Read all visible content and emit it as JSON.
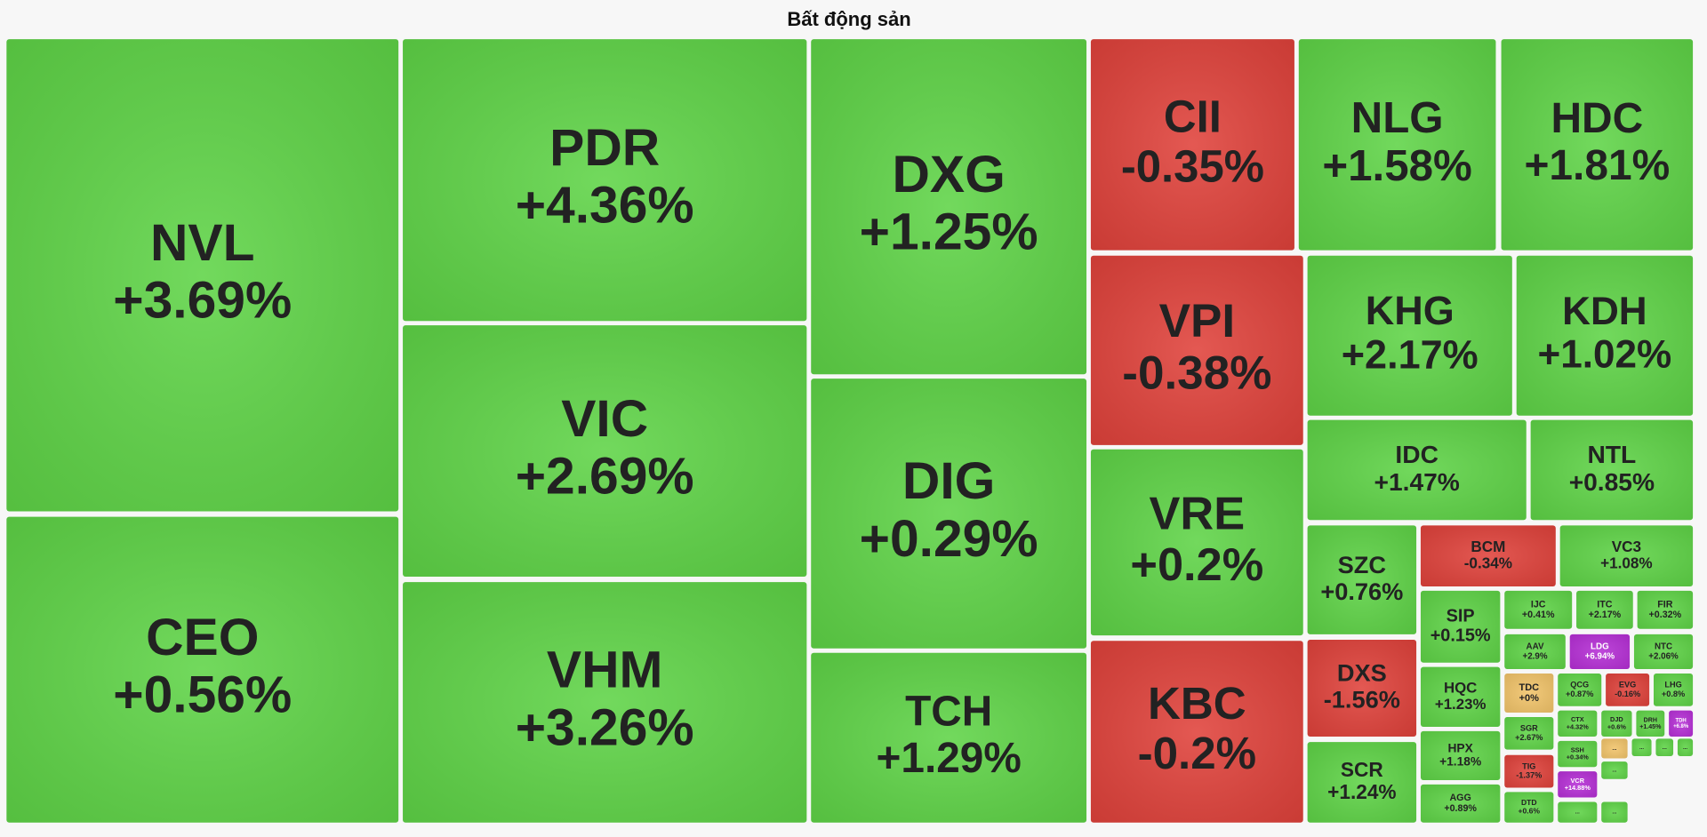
{
  "chart_data": {
    "type": "treemap",
    "title": "Bất động sản",
    "items": [
      {
        "name": "NVL",
        "value": 3.69,
        "value_label": "+3.69%",
        "color": "#5fd447"
      },
      {
        "name": "CEO",
        "value": 0.56,
        "value_label": "+0.56%",
        "color": "#5fd447"
      },
      {
        "name": "PDR",
        "value": 4.36,
        "value_label": "+4.36%",
        "color": "#5fd447"
      },
      {
        "name": "VIC",
        "value": 2.69,
        "value_label": "+2.69%",
        "color": "#5fd447"
      },
      {
        "name": "VHM",
        "value": 3.26,
        "value_label": "+3.26%",
        "color": "#5fd447"
      },
      {
        "name": "DXG",
        "value": 1.25,
        "value_label": "+1.25%",
        "color": "#5fd447"
      },
      {
        "name": "DIG",
        "value": 0.29,
        "value_label": "+0.29%",
        "color": "#5fd447"
      },
      {
        "name": "TCH",
        "value": 1.29,
        "value_label": "+1.29%",
        "color": "#5fd447"
      },
      {
        "name": "CII",
        "value": -0.35,
        "value_label": "-0.35%",
        "color": "#e0423b"
      },
      {
        "name": "NLG",
        "value": 1.58,
        "value_label": "+1.58%",
        "color": "#5fd447"
      },
      {
        "name": "HDC",
        "value": 1.81,
        "value_label": "+1.81%",
        "color": "#5fd447"
      },
      {
        "name": "VPI",
        "value": -0.38,
        "value_label": "-0.38%",
        "color": "#e0423b"
      },
      {
        "name": "KHG",
        "value": 2.17,
        "value_label": "+2.17%",
        "color": "#5fd447"
      },
      {
        "name": "KDH",
        "value": 1.02,
        "value_label": "+1.02%",
        "color": "#5fd447"
      },
      {
        "name": "VRE",
        "value": 0.2,
        "value_label": "+0.2%",
        "color": "#5fd447"
      },
      {
        "name": "KBC",
        "value": -0.2,
        "value_label": "-0.2%",
        "color": "#e0423b"
      },
      {
        "name": "IDC",
        "value": 1.47,
        "value_label": "+1.47%",
        "color": "#5fd447"
      },
      {
        "name": "NTL",
        "value": 0.85,
        "value_label": "+0.85%",
        "color": "#5fd447"
      },
      {
        "name": "SZC",
        "value": 0.76,
        "value_label": "+0.76%",
        "color": "#5fd447"
      },
      {
        "name": "DXS",
        "value": -1.56,
        "value_label": "-1.56%",
        "color": "#e0423b"
      },
      {
        "name": "SCR",
        "value": 1.24,
        "value_label": "+1.24%",
        "color": "#5fd447"
      },
      {
        "name": "BCM",
        "value": -0.34,
        "value_label": "-0.34%",
        "color": "#e0423b"
      },
      {
        "name": "VC3",
        "value": 1.08,
        "value_label": "+1.08%",
        "color": "#5fd447"
      },
      {
        "name": "SIP",
        "value": 0.15,
        "value_label": "+0.15%",
        "color": "#5fd447"
      },
      {
        "name": "HQC",
        "value": 1.23,
        "value_label": "+1.23%",
        "color": "#5fd447"
      },
      {
        "name": "HPX",
        "value": 1.18,
        "value_label": "+1.18%",
        "color": "#5fd447"
      },
      {
        "name": "AGG",
        "value": 0.89,
        "value_label": "+0.89%",
        "color": "#5fd447"
      },
      {
        "name": "IJC",
        "value": 0.41,
        "value_label": "+0.41%",
        "color": "#5fd447"
      },
      {
        "name": "ITC",
        "value": 2.17,
        "value_label": "+2.17%",
        "color": "#5fd447"
      },
      {
        "name": "FIR",
        "value": 0.32,
        "value_label": "+0.32%",
        "color": "#5fd447"
      },
      {
        "name": "AAV",
        "value": 2.9,
        "value_label": "+2.9%",
        "color": "#5fd447"
      },
      {
        "name": "LDG",
        "value": 6.94,
        "value_label": "+6.94%",
        "color": "#b62fd6",
        "text_color": "#ffffff"
      },
      {
        "name": "NTC",
        "value": 2.06,
        "value_label": "+2.06%",
        "color": "#5fd447"
      },
      {
        "name": "TDC",
        "value": 0,
        "value_label": "+0%",
        "color": "#f2c46a"
      },
      {
        "name": "QCG",
        "value": 0.87,
        "value_label": "+0.87%",
        "color": "#5fd447"
      },
      {
        "name": "EVG",
        "value": -0.16,
        "value_label": "-0.16%",
        "color": "#e0423b"
      },
      {
        "name": "LHG",
        "value": 0.8,
        "value_label": "+0.8%",
        "color": "#5fd447"
      },
      {
        "name": "SGR",
        "value": 2.67,
        "value_label": "+2.67%",
        "color": "#5fd447"
      },
      {
        "name": "CTX",
        "value": 4.32,
        "value_label": "+4.32%",
        "color": "#5fd447"
      },
      {
        "name": "DJD",
        "value": 0.6,
        "value_label": "+0.6%",
        "color": "#5fd447"
      },
      {
        "name": "DRH",
        "value": 1.45,
        "value_label": "+1.45%",
        "color": "#5fd447"
      },
      {
        "name": "TDH",
        "value": 6.8,
        "value_label": "+6.8%",
        "color": "#b62fd6",
        "text_color": "#ffffff"
      },
      {
        "name": "TIG",
        "value": -1.37,
        "value_label": "-1.37%",
        "color": "#e0423b"
      },
      {
        "name": "SSH",
        "value": 0.34,
        "value_label": "+0.34%",
        "color": "#5fd447"
      },
      {
        "name": "VCR",
        "value": 14.88,
        "value_label": "+14.88%",
        "color": "#b62fd6",
        "text_color": "#ffffff"
      },
      {
        "name": "DTD",
        "value": 0.6,
        "value_label": "+0.6%",
        "color": "#5fd447"
      },
      {
        "name": "...",
        "color": "#f2c46a"
      },
      {
        "name": "...",
        "color": "#5fd447"
      },
      {
        "name": "...",
        "color": "#5fd447"
      },
      {
        "name": "...",
        "color": "#5fd447"
      },
      {
        "name": "...",
        "color": "#5fd447"
      },
      {
        "name": "...",
        "color": "#5fd447"
      },
      {
        "name": "...",
        "color": "#5fd447"
      }
    ]
  }
}
